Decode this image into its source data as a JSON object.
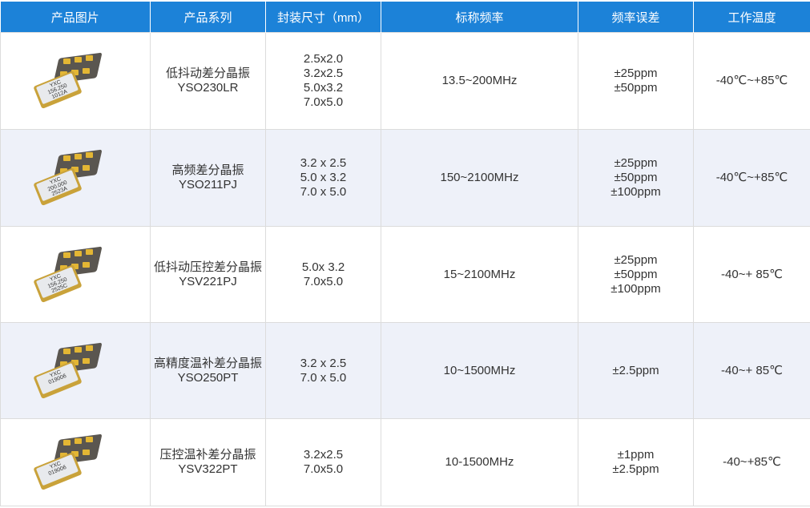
{
  "header": [
    "产品图片",
    "产品系列",
    "封装尺寸（mm）",
    "标称频率",
    "频率误差",
    "工作温度"
  ],
  "rows": [
    {
      "name": "低抖动差分晶振",
      "model": "YSO230LR",
      "sizes": [
        "2.5x2.0",
        "3.2x2.5",
        "5.0x3.2",
        "7.0x5.0"
      ],
      "freq": "13.5~200MHz",
      "tol": [
        "±25ppm",
        "±50ppm"
      ],
      "temp": "-40℃~+85℃",
      "chip_label": [
        "YXC",
        "156.250",
        "1012A"
      ]
    },
    {
      "name": "高频差分晶振",
      "model": "YSO211PJ",
      "sizes": [
        "3.2 x 2.5",
        "5.0 x 3.2",
        "7.0 x 5.0"
      ],
      "freq": "150~2100MHz",
      "tol": [
        "±25ppm",
        "±50ppm",
        "±100ppm"
      ],
      "temp": "-40℃~+85℃",
      "chip_label": [
        "YXC",
        "200.000",
        "2523A"
      ]
    },
    {
      "name": "低抖动压控差分晶振",
      "model": "YSV221PJ",
      "sizes": [
        "5.0x 3.2",
        "7.0x5.0"
      ],
      "freq": "15~2100MHz",
      "tol": [
        "±25ppm",
        "±50ppm",
        "±100ppm"
      ],
      "temp": "-40~+ 85℃",
      "chip_label": [
        "YXC",
        "156.250",
        "2525C"
      ]
    },
    {
      "name": "高精度温补差分晶振",
      "model": "YSO250PT",
      "sizes": [
        "3.2 x 2.5",
        "7.0 x 5.0"
      ],
      "freq": "10~1500MHz",
      "tol": [
        "±2.5ppm"
      ],
      "temp": "-40~+ 85℃",
      "chip_label": [
        "YXC",
        "019006"
      ]
    },
    {
      "name": "压控温补差分晶振",
      "model": "YSV322PT",
      "sizes": [
        "3.2x2.5",
        "7.0x5.0"
      ],
      "freq": "10-1500MHz",
      "tol": [
        "±1ppm",
        "±2.5ppm"
      ],
      "temp": "-40~+85℃",
      "chip_label": [
        "YXC",
        "019006"
      ]
    }
  ]
}
